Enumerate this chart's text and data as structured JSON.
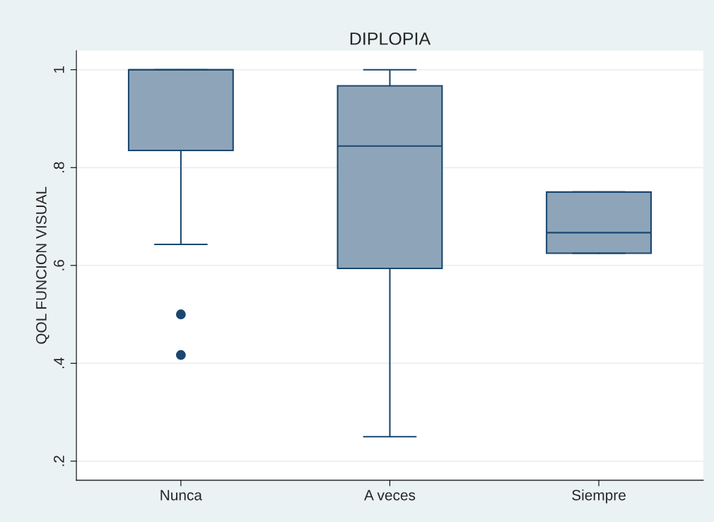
{
  "chart_data": {
    "type": "box",
    "title": "DIPLOPIA",
    "ylabel": "QOL FUNCION VISUAL",
    "categories": [
      "Nunca",
      "A veces",
      "Siempre"
    ],
    "boxes": [
      {
        "low": 0.643,
        "q1": 0.835,
        "median": 1,
        "q3": 1,
        "high": 1,
        "outliers": [
          0.5,
          0.417
        ]
      },
      {
        "low": 0.25,
        "q1": 0.594,
        "median": 0.844,
        "q3": 0.967,
        "high": 1
      },
      {
        "low": 0.625,
        "q1": 0.625,
        "median": 0.667,
        "q3": 0.75,
        "high": 0.75
      }
    ],
    "color": "#8ea5b9",
    "ylim": [
      0.161,
      1.039
    ],
    "yticks": [
      {
        "value": 0.2,
        "label": ".2"
      },
      {
        "value": 0.4,
        "label": ".4"
      },
      {
        "value": 0.6,
        "label": ".6"
      },
      {
        "value": 0.8,
        "label": ".8"
      },
      1
    ],
    "grid": "y",
    "legend": false,
    "marker": "circle"
  }
}
